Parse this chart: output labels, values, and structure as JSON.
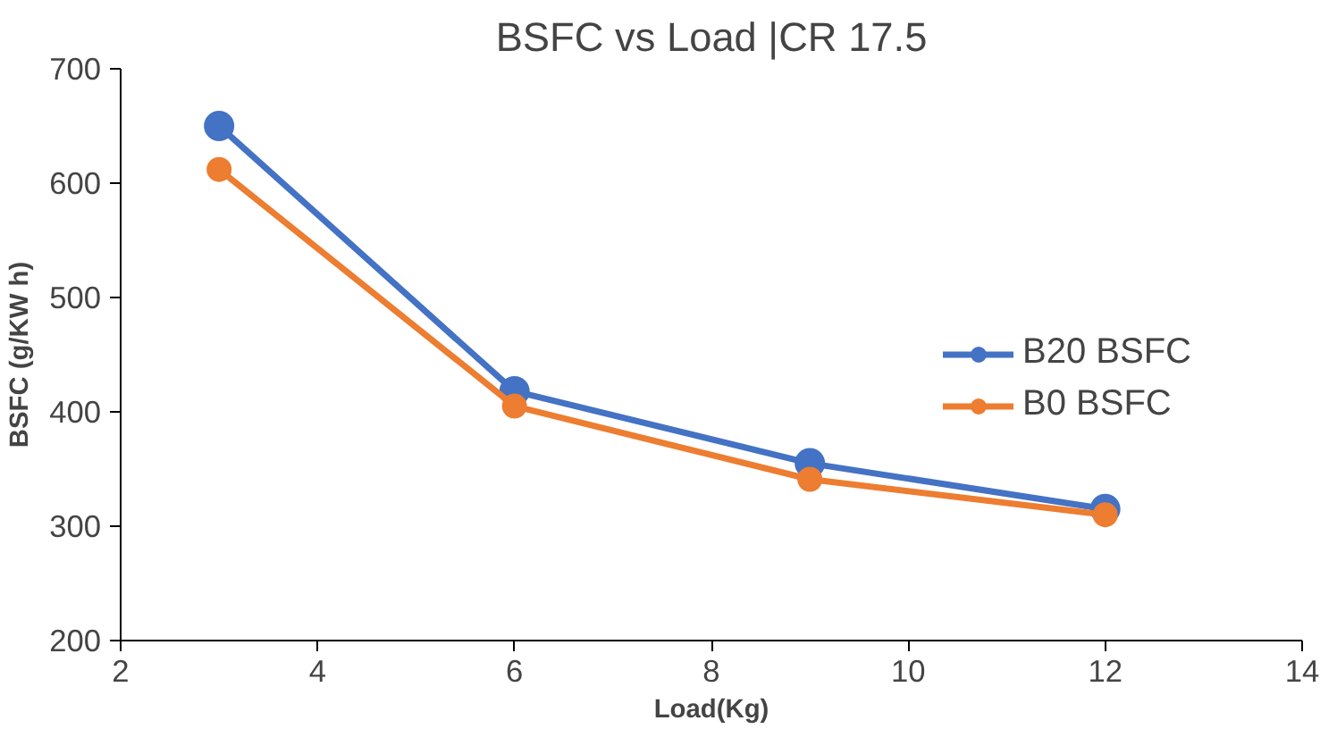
{
  "chart_data": {
    "type": "line",
    "title": "BSFC vs Load |CR 17.5",
    "xlabel": "Load(Kg)",
    "ylabel": "BSFC (g/KW h)",
    "x": [
      3,
      6,
      9,
      12
    ],
    "series": [
      {
        "name": "B20 BSFC",
        "color": "#4472c4",
        "values": [
          650,
          418,
          355,
          315
        ]
      },
      {
        "name": "B0 BSFC",
        "color": "#ed7d31",
        "values": [
          612,
          405,
          341,
          310
        ]
      }
    ],
    "xlim": [
      2,
      14
    ],
    "xticks": [
      2,
      4,
      6,
      8,
      10,
      12,
      14
    ],
    "ylim": [
      200,
      700
    ],
    "yticks": [
      200,
      300,
      400,
      500,
      600,
      700
    ],
    "grid": false,
    "legend": "right",
    "marker": "circle",
    "line_style": "solid"
  }
}
